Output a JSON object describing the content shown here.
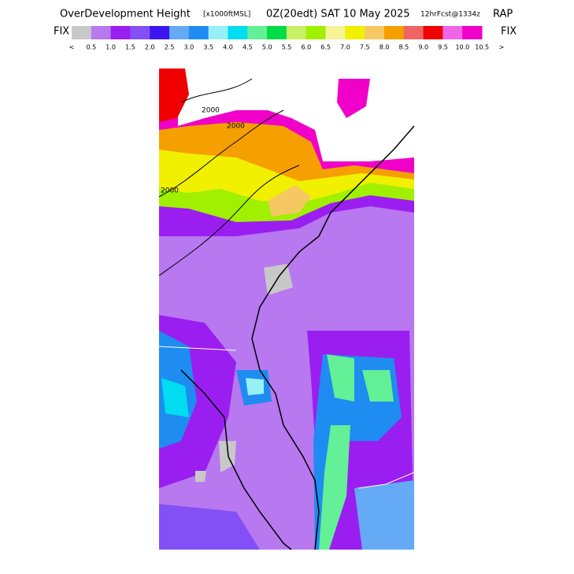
{
  "header": {
    "field": "OverDevelopment Height",
    "units": "[x1000ftMSL]",
    "valid": "0Z(20edt) SAT 10 May 2025",
    "forecast": "12hrFcst@1334z",
    "model": "RAP"
  },
  "legend": {
    "left": "FIX",
    "right": "FIX",
    "colors": [
      "#c8c8c8",
      "#b878f0",
      "#9b1ef0",
      "#8250f5",
      "#3c14f0",
      "#64aaf5",
      "#1e8cf0",
      "#96f0f5",
      "#00dcf0",
      "#64f096",
      "#00dc46",
      "#c8f064",
      "#a0f000",
      "#f5f596",
      "#f0f000",
      "#f5c864",
      "#f5a000",
      "#f06464",
      "#f00000",
      "#f064e6",
      "#f000c8"
    ],
    "labels": [
      "<",
      "0.5",
      "1.0",
      "1.5",
      "2.0",
      "2.5",
      "3.0",
      "3.5",
      "4.0",
      "4.5",
      "5.0",
      "5.5",
      "6.0",
      "6.5",
      "7.0",
      "7.5",
      "8.0",
      "8.5",
      "9.0",
      "9.5",
      "10.0",
      "10.5",
      ">"
    ]
  },
  "map": {
    "contour_labels": [
      "2000",
      "2000",
      "2000"
    ]
  }
}
